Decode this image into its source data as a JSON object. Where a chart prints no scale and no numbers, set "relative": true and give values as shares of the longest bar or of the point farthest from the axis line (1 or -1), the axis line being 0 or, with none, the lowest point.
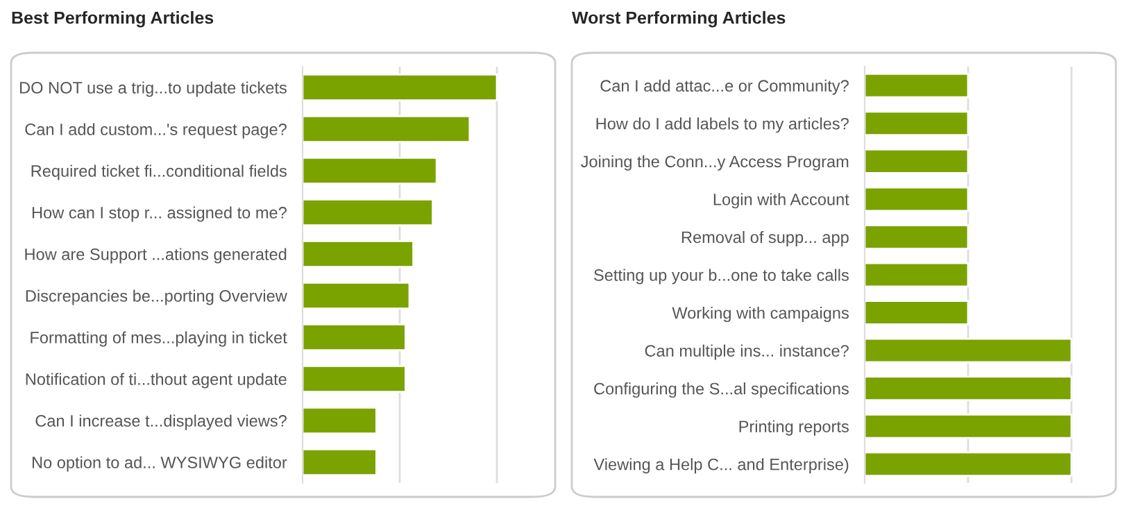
{
  "chart_data": [
    {
      "type": "bar",
      "title": "Best Performing Articles",
      "orientation": "horizontal",
      "relative": true,
      "tick_labels": "y",
      "ref_lines": [
        {
          "axis": "x",
          "value": 0.5,
          "color": "#dddddd"
        },
        {
          "axis": "x",
          "value": 1,
          "color": "#dddddd"
        }
      ],
      "categories": [
        "DO NOT use a trig...to update tickets",
        "Can I add custom...'s request page?",
        "Required ticket fi...conditional fields",
        "How can I stop r... assigned to me?",
        "How are Support ...ations generated",
        "Discrepancies be...porting Overview",
        "Formatting of mes...playing in ticket",
        "Notification of ti...thout agent update",
        "Can I increase t...displayed views?",
        "No option to ad... WYSIWYG editor"
      ],
      "series": [
        {
          "color": "#7aa300",
          "values": [
            1,
            0.86,
            0.69,
            0.67,
            0.57,
            0.55,
            0.53,
            0.53,
            0.38,
            0.38
          ]
        }
      ]
    },
    {
      "type": "bar",
      "title": "Worst Performing Articles",
      "orientation": "horizontal",
      "relative": true,
      "tick_labels": "y",
      "ref_lines": [
        {
          "axis": "x",
          "value": 0.5,
          "color": "#dddddd"
        },
        {
          "axis": "x",
          "value": 1,
          "color": "#dddddd"
        }
      ],
      "categories": [
        "Can I add attac...e or Community?",
        "How do I add labels to my articles?",
        "Joining the Conn...y Access Program",
        "Login with Account",
        "Removal of supp... app",
        "Setting up your b...one to take calls",
        "Working with campaigns",
        "Can multiple ins... instance?",
        "Configuring the S...al specifications",
        "Printing reports",
        "Viewing a Help C... and Enterprise)"
      ],
      "series": [
        {
          "color": "#7aa300",
          "values": [
            0.5,
            0.5,
            0.5,
            0.5,
            0.5,
            0.5,
            0.5,
            1,
            1,
            1,
            1
          ]
        }
      ]
    }
  ]
}
